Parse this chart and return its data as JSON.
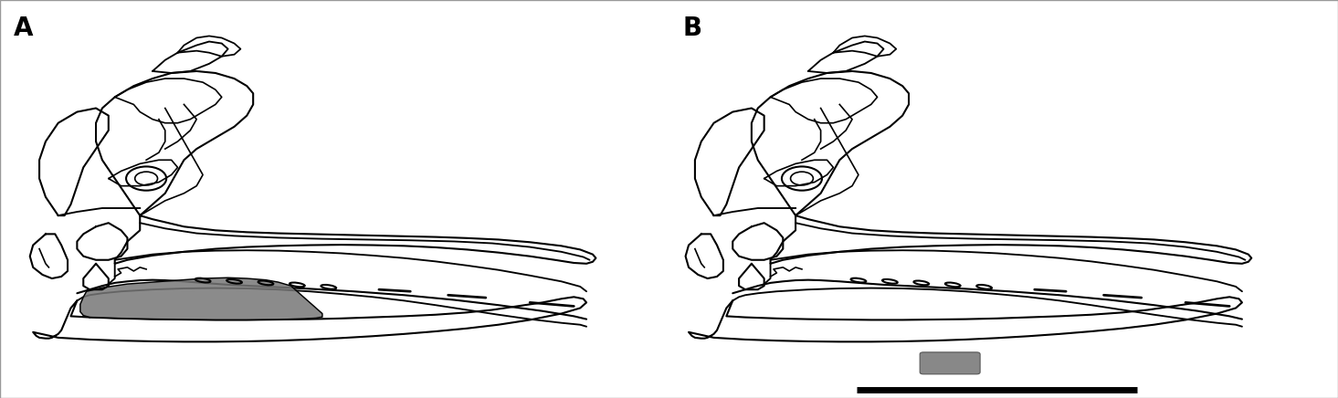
{
  "fig_width": 14.65,
  "fig_height": 4.36,
  "dpi": 100,
  "bg_color": "#ffffff",
  "label_A": "A",
  "label_B": "B",
  "label_fontsize": 20,
  "label_fontweight": "bold",
  "gray_shade_color": "#777777",
  "line_color": "#000000",
  "line_width": 1.5,
  "scale_bar_color": "#000000",
  "scale_bar_lw": 5
}
